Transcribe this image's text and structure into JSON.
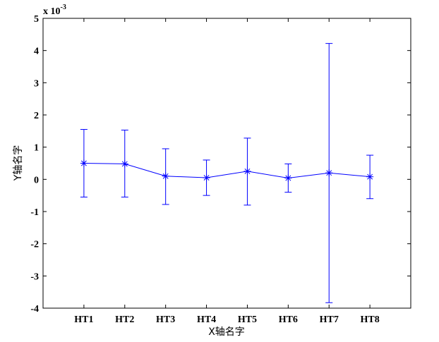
{
  "chart_data": {
    "type": "line",
    "categories": [
      "HT1",
      "HT2",
      "HT3",
      "HT4",
      "HT5",
      "HT6",
      "HT7",
      "HT8"
    ],
    "series": [
      {
        "values": [
          0.0005,
          0.00048,
          0.0001,
          5e-05,
          0.00025,
          4e-05,
          0.0002,
          8e-05
        ],
        "err_low": [
          -0.00055,
          -0.00055,
          -0.00078,
          -0.0005,
          -0.0008,
          -0.0004,
          -0.00383,
          -0.0006
        ],
        "err_high": [
          0.00155,
          0.00153,
          0.00095,
          0.0006,
          0.00128,
          0.00048,
          0.00422,
          0.00075
        ],
        "color": "#0000ff",
        "marker": "asterisk"
      }
    ],
    "xlabel": "X轴名字",
    "ylabel": "Y轴名字",
    "ylim": [
      -0.004,
      0.005
    ],
    "yticks": [
      -4,
      -3,
      -2,
      -1,
      0,
      1,
      2,
      3,
      4,
      5
    ],
    "y_exponent_base": "x 10",
    "y_exponent_power": "-3",
    "grid": false,
    "legend": "none"
  }
}
